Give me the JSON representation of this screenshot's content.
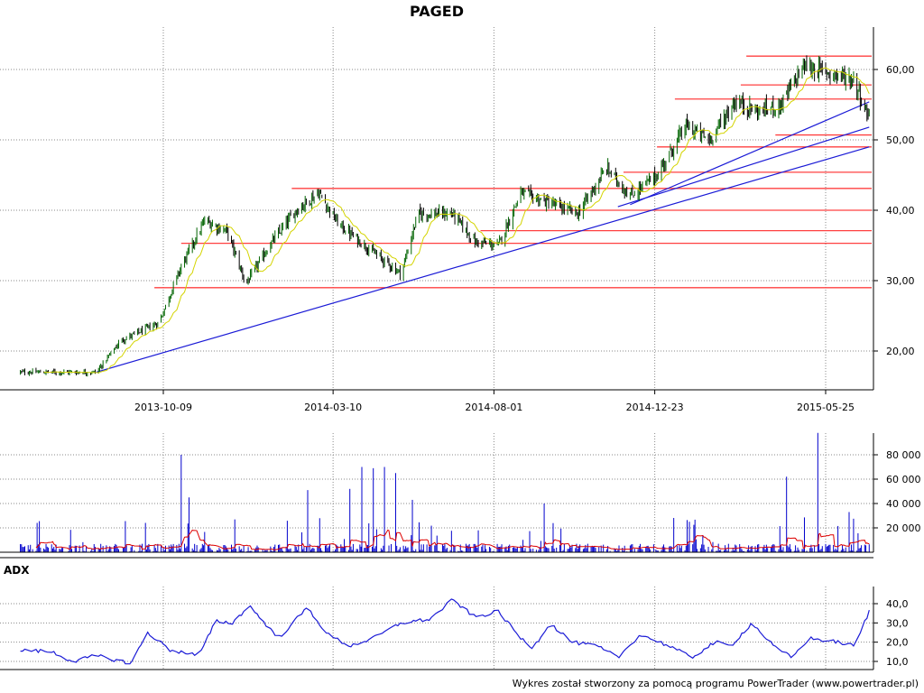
{
  "title": "PAGED",
  "footer": "Wykres został stworzony za pomocą programu PowerTrader (www.powertrader.pl)",
  "colors": {
    "candle_up": "#006400",
    "candle_down": "#000000",
    "sma": "#d4d400",
    "support_lines": "#ff4040",
    "trend_lines": "#1a1ad6",
    "volume_bars": "#0000cc",
    "volume_avg": "#dd0000",
    "adx_line": "#1a1ad6"
  },
  "chart_data": [
    {
      "type": "candlestick",
      "name": "price",
      "title": "PAGED",
      "x_ticks": [
        "2013-10-09",
        "2014-03-10",
        "2014-08-01",
        "2014-12-23",
        "2015-05-25"
      ],
      "y_ticks": [
        "20,00",
        "30,00",
        "40,00",
        "50,00",
        "60,00"
      ],
      "ylim": [
        15,
        64
      ],
      "grid": true,
      "keypoints": [
        {
          "date": "2013-06-01",
          "close": 17.0
        },
        {
          "date": "2013-08-10",
          "close": 17.0
        },
        {
          "date": "2013-09-01",
          "close": 21.5
        },
        {
          "date": "2013-10-05",
          "close": 24.0
        },
        {
          "date": "2013-10-25",
          "close": 32.0
        },
        {
          "date": "2013-11-15",
          "close": 38.5
        },
        {
          "date": "2013-12-05",
          "close": 37.0
        },
        {
          "date": "2013-12-22",
          "close": 29.5
        },
        {
          "date": "2014-01-12",
          "close": 35.0
        },
        {
          "date": "2014-02-05",
          "close": 40.0
        },
        {
          "date": "2014-02-25",
          "close": 42.5
        },
        {
          "date": "2014-03-15",
          "close": 38.0
        },
        {
          "date": "2014-04-15",
          "close": 34.0
        },
        {
          "date": "2014-05-10",
          "close": 31.0
        },
        {
          "date": "2014-05-25",
          "close": 39.5
        },
        {
          "date": "2014-06-25",
          "close": 39.5
        },
        {
          "date": "2014-07-15",
          "close": 35.5
        },
        {
          "date": "2014-08-05",
          "close": 35.0
        },
        {
          "date": "2014-08-25",
          "close": 42.5
        },
        {
          "date": "2014-09-20",
          "close": 41.0
        },
        {
          "date": "2014-10-15",
          "close": 39.5
        },
        {
          "date": "2014-11-10",
          "close": 46.0
        },
        {
          "date": "2014-12-01",
          "close": 42.0
        },
        {
          "date": "2014-12-25",
          "close": 45.0
        },
        {
          "date": "2015-01-20",
          "close": 52.0
        },
        {
          "date": "2015-02-10",
          "close": 50.0
        },
        {
          "date": "2015-03-05",
          "close": 55.5
        },
        {
          "date": "2015-03-25",
          "close": 54.0
        },
        {
          "date": "2015-04-15",
          "close": 55.0
        },
        {
          "date": "2015-05-05",
          "close": 60.5
        },
        {
          "date": "2015-05-30",
          "close": 59.5
        },
        {
          "date": "2015-06-20",
          "close": 58.5
        },
        {
          "date": "2015-06-30",
          "close": 54.0
        }
      ],
      "support_levels": [
        {
          "level": 29.0,
          "from": "2013-10-01"
        },
        {
          "level": 35.3,
          "from": "2013-10-25"
        },
        {
          "level": 37.1,
          "from": "2014-07-20"
        },
        {
          "level": 40.0,
          "from": "2014-08-15"
        },
        {
          "level": 43.1,
          "from": "2014-02-01"
        },
        {
          "level": 45.4,
          "from": "2014-11-25"
        },
        {
          "level": 49.0,
          "from": "2014-12-25"
        },
        {
          "level": 50.7,
          "from": "2015-04-10"
        },
        {
          "level": 55.8,
          "from": "2015-01-10"
        },
        {
          "level": 57.8,
          "from": "2015-03-10"
        },
        {
          "level": 61.9,
          "from": "2015-03-15"
        }
      ],
      "trend_lines": [
        {
          "from": {
            "date": "2013-08-10",
            "value": 17.0
          },
          "to": {
            "date": "2015-07-03",
            "value": 49.0
          }
        },
        {
          "from": {
            "date": "2014-11-20",
            "value": 40.5
          },
          "to": {
            "date": "2015-07-03",
            "value": 51.8
          }
        },
        {
          "from": {
            "date": "2014-12-01",
            "value": 40.8
          },
          "to": {
            "date": "2015-07-03",
            "value": 55.4
          }
        }
      ]
    },
    {
      "type": "bar",
      "name": "volume",
      "y_ticks": [
        "20 000",
        "40 000",
        "60 000",
        "80 000"
      ],
      "ylim": [
        0,
        100000
      ],
      "grid": true,
      "spikes": [
        {
          "date": "2013-10-25",
          "value": 80000
        },
        {
          "date": "2013-11-01",
          "value": 45000
        },
        {
          "date": "2014-02-15",
          "value": 51000
        },
        {
          "date": "2014-03-25",
          "value": 52000
        },
        {
          "date": "2014-04-05",
          "value": 70000
        },
        {
          "date": "2014-04-15",
          "value": 69000
        },
        {
          "date": "2014-04-25",
          "value": 70000
        },
        {
          "date": "2014-05-05",
          "value": 65000
        },
        {
          "date": "2014-05-20",
          "value": 43000
        },
        {
          "date": "2014-09-15",
          "value": 40000
        },
        {
          "date": "2015-04-20",
          "value": 62000
        },
        {
          "date": "2015-05-18",
          "value": 98000
        },
        {
          "date": "2015-06-15",
          "value": 33000
        }
      ]
    },
    {
      "type": "line",
      "name": "ADX",
      "title": "ADX",
      "y_ticks": [
        "10,0",
        "20,0",
        "30,0",
        "40,0"
      ],
      "ylim": [
        5,
        45
      ],
      "grid": true,
      "keypoints": [
        {
          "date": "2013-06-01",
          "value": 16
        },
        {
          "date": "2013-07-01",
          "value": 15
        },
        {
          "date": "2013-07-20",
          "value": 10
        },
        {
          "date": "2013-08-10",
          "value": 13
        },
        {
          "date": "2013-09-10",
          "value": 9
        },
        {
          "date": "2013-09-25",
          "value": 25
        },
        {
          "date": "2013-10-15",
          "value": 16
        },
        {
          "date": "2013-11-10",
          "value": 13
        },
        {
          "date": "2013-11-25",
          "value": 31
        },
        {
          "date": "2013-12-10",
          "value": 30
        },
        {
          "date": "2013-12-25",
          "value": 39
        },
        {
          "date": "2014-01-20",
          "value": 22
        },
        {
          "date": "2014-02-15",
          "value": 38
        },
        {
          "date": "2014-03-05",
          "value": 24
        },
        {
          "date": "2014-03-25",
          "value": 18
        },
        {
          "date": "2014-04-15",
          "value": 22
        },
        {
          "date": "2014-05-10",
          "value": 30
        },
        {
          "date": "2014-06-05",
          "value": 32
        },
        {
          "date": "2014-06-25",
          "value": 42
        },
        {
          "date": "2014-07-15",
          "value": 33
        },
        {
          "date": "2014-08-05",
          "value": 36
        },
        {
          "date": "2014-08-25",
          "value": 22
        },
        {
          "date": "2014-09-05",
          "value": 17
        },
        {
          "date": "2014-09-20",
          "value": 30
        },
        {
          "date": "2014-10-10",
          "value": 20
        },
        {
          "date": "2014-11-01",
          "value": 18
        },
        {
          "date": "2014-11-20",
          "value": 12
        },
        {
          "date": "2014-12-10",
          "value": 24
        },
        {
          "date": "2015-01-05",
          "value": 18
        },
        {
          "date": "2015-01-25",
          "value": 12
        },
        {
          "date": "2015-02-15",
          "value": 20
        },
        {
          "date": "2015-03-01",
          "value": 18
        },
        {
          "date": "2015-03-20",
          "value": 30
        },
        {
          "date": "2015-04-10",
          "value": 17
        },
        {
          "date": "2015-04-25",
          "value": 12
        },
        {
          "date": "2015-05-10",
          "value": 22
        },
        {
          "date": "2015-06-05",
          "value": 20
        },
        {
          "date": "2015-06-20",
          "value": 18
        },
        {
          "date": "2015-07-03",
          "value": 36
        }
      ]
    }
  ]
}
